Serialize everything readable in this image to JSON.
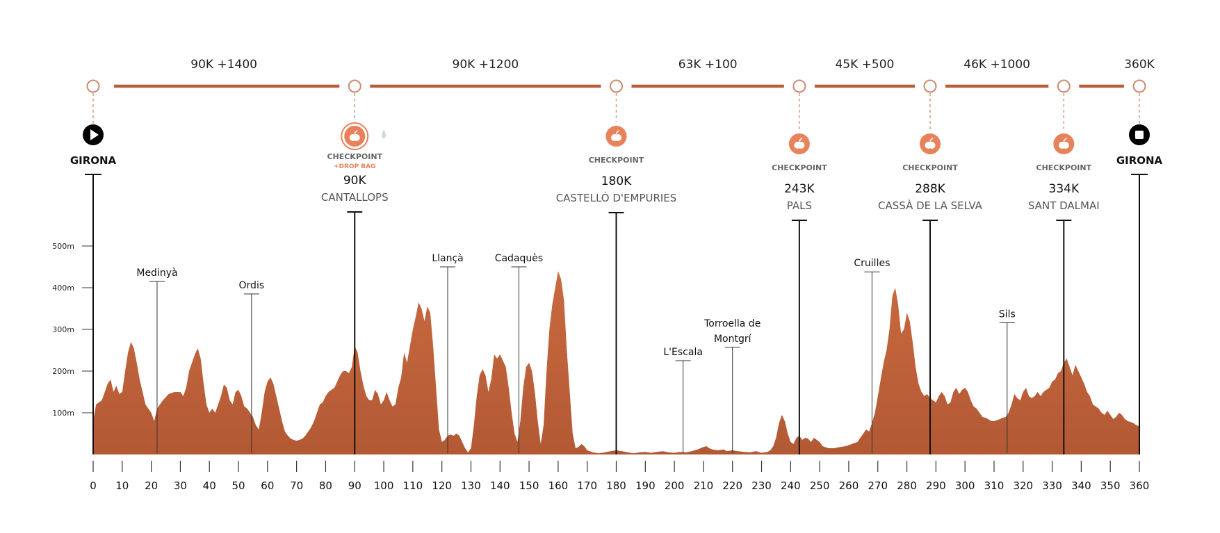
{
  "chart_data": {
    "type": "area",
    "title": "",
    "xlabel": "",
    "ylabel": "",
    "xlim": [
      0,
      360
    ],
    "ylim": [
      0,
      500
    ],
    "y_ticks": [
      {
        "value": 100,
        "label": "100m"
      },
      {
        "value": 200,
        "label": "200m"
      },
      {
        "value": 300,
        "label": "300m"
      },
      {
        "value": 400,
        "label": "400m"
      },
      {
        "value": 500,
        "label": "500m"
      }
    ],
    "x_ticks": [
      0,
      10,
      20,
      30,
      40,
      50,
      60,
      70,
      80,
      90,
      100,
      110,
      120,
      130,
      140,
      150,
      160,
      170,
      180,
      190,
      200,
      210,
      220,
      230,
      240,
      250,
      260,
      270,
      280,
      290,
      300,
      310,
      320,
      330,
      340,
      350,
      360
    ],
    "profile_color": "#c0623a",
    "accent_color": "#e8825a",
    "elevation": [
      [
        0,
        80
      ],
      [
        1,
        120
      ],
      [
        3,
        130
      ],
      [
        5,
        170
      ],
      [
        6,
        180
      ],
      [
        7,
        150
      ],
      [
        8,
        165
      ],
      [
        9,
        145
      ],
      [
        10,
        150
      ],
      [
        11,
        200
      ],
      [
        12,
        245
      ],
      [
        13,
        270
      ],
      [
        14,
        255
      ],
      [
        15,
        220
      ],
      [
        16,
        180
      ],
      [
        17,
        150
      ],
      [
        18,
        120
      ],
      [
        19,
        110
      ],
      [
        20,
        100
      ],
      [
        21,
        80
      ],
      [
        22,
        110
      ],
      [
        24,
        130
      ],
      [
        26,
        145
      ],
      [
        28,
        150
      ],
      [
        30,
        150
      ],
      [
        31,
        140
      ],
      [
        32,
        160
      ],
      [
        33,
        200
      ],
      [
        35,
        240
      ],
      [
        36,
        255
      ],
      [
        37,
        230
      ],
      [
        38,
        170
      ],
      [
        39,
        120
      ],
      [
        40,
        100
      ],
      [
        41,
        110
      ],
      [
        42,
        100
      ],
      [
        43,
        120
      ],
      [
        44,
        140
      ],
      [
        45,
        168
      ],
      [
        46,
        160
      ],
      [
        47,
        130
      ],
      [
        48,
        120
      ],
      [
        49,
        150
      ],
      [
        50,
        155
      ],
      [
        51,
        140
      ],
      [
        52,
        115
      ],
      [
        53,
        110
      ],
      [
        54,
        100
      ],
      [
        55,
        90
      ],
      [
        56,
        70
      ],
      [
        57,
        60
      ],
      [
        58,
        100
      ],
      [
        59,
        150
      ],
      [
        60,
        175
      ],
      [
        61,
        185
      ],
      [
        62,
        170
      ],
      [
        63,
        140
      ],
      [
        64,
        110
      ],
      [
        65,
        80
      ],
      [
        66,
        55
      ],
      [
        67,
        45
      ],
      [
        68,
        38
      ],
      [
        69,
        35
      ],
      [
        70,
        33
      ],
      [
        71,
        35
      ],
      [
        72,
        38
      ],
      [
        73,
        45
      ],
      [
        74,
        55
      ],
      [
        75,
        65
      ],
      [
        76,
        80
      ],
      [
        77,
        100
      ],
      [
        78,
        120
      ],
      [
        79,
        125
      ],
      [
        80,
        140
      ],
      [
        81,
        150
      ],
      [
        82,
        155
      ],
      [
        83,
        160
      ],
      [
        84,
        175
      ],
      [
        85,
        190
      ],
      [
        86,
        200
      ],
      [
        87,
        200
      ],
      [
        88,
        195
      ],
      [
        89,
        210
      ],
      [
        90,
        260
      ],
      [
        91,
        245
      ],
      [
        92,
        200
      ],
      [
        93,
        165
      ],
      [
        94,
        140
      ],
      [
        95,
        130
      ],
      [
        96,
        130
      ],
      [
        97,
        155
      ],
      [
        98,
        145
      ],
      [
        99,
        120
      ],
      [
        100,
        130
      ],
      [
        101,
        150
      ],
      [
        102,
        130
      ],
      [
        103,
        115
      ],
      [
        104,
        120
      ],
      [
        105,
        160
      ],
      [
        106,
        185
      ],
      [
        107,
        245
      ],
      [
        108,
        220
      ],
      [
        109,
        260
      ],
      [
        110,
        300
      ],
      [
        111,
        330
      ],
      [
        112,
        365
      ],
      [
        113,
        350
      ],
      [
        114,
        320
      ],
      [
        115,
        355
      ],
      [
        116,
        340
      ],
      [
        117,
        260
      ],
      [
        118,
        160
      ],
      [
        119,
        60
      ],
      [
        120,
        30
      ],
      [
        121,
        35
      ],
      [
        122,
        45
      ],
      [
        123,
        48
      ],
      [
        124,
        45
      ],
      [
        125,
        50
      ],
      [
        126,
        45
      ],
      [
        127,
        30
      ],
      [
        128,
        15
      ],
      [
        129,
        5
      ],
      [
        130,
        15
      ],
      [
        131,
        70
      ],
      [
        132,
        140
      ],
      [
        133,
        190
      ],
      [
        134,
        205
      ],
      [
        135,
        190
      ],
      [
        136,
        150
      ],
      [
        137,
        180
      ],
      [
        138,
        240
      ],
      [
        139,
        230
      ],
      [
        140,
        240
      ],
      [
        141,
        225
      ],
      [
        142,
        210
      ],
      [
        143,
        160
      ],
      [
        144,
        100
      ],
      [
        145,
        50
      ],
      [
        146,
        30
      ],
      [
        147,
        80
      ],
      [
        148,
        160
      ],
      [
        149,
        210
      ],
      [
        150,
        220
      ],
      [
        151,
        200
      ],
      [
        152,
        150
      ],
      [
        153,
        80
      ],
      [
        154,
        25
      ],
      [
        155,
        70
      ],
      [
        156,
        200
      ],
      [
        157,
        300
      ],
      [
        158,
        360
      ],
      [
        159,
        400
      ],
      [
        160,
        440
      ],
      [
        161,
        420
      ],
      [
        162,
        370
      ],
      [
        163,
        250
      ],
      [
        164,
        150
      ],
      [
        165,
        50
      ],
      [
        166,
        15
      ],
      [
        167,
        18
      ],
      [
        168,
        25
      ],
      [
        169,
        20
      ],
      [
        170,
        10
      ],
      [
        172,
        5
      ],
      [
        174,
        3
      ],
      [
        176,
        5
      ],
      [
        178,
        8
      ],
      [
        180,
        10
      ],
      [
        182,
        8
      ],
      [
        184,
        5
      ],
      [
        186,
        3
      ],
      [
        188,
        5
      ],
      [
        190,
        6
      ],
      [
        192,
        4
      ],
      [
        194,
        6
      ],
      [
        196,
        8
      ],
      [
        198,
        5
      ],
      [
        200,
        4
      ],
      [
        202,
        6
      ],
      [
        204,
        5
      ],
      [
        206,
        8
      ],
      [
        208,
        12
      ],
      [
        210,
        18
      ],
      [
        211,
        20
      ],
      [
        212,
        15
      ],
      [
        213,
        12
      ],
      [
        215,
        10
      ],
      [
        217,
        12
      ],
      [
        218,
        8
      ],
      [
        220,
        10
      ],
      [
        222,
        8
      ],
      [
        224,
        6
      ],
      [
        226,
        5
      ],
      [
        228,
        8
      ],
      [
        230,
        4
      ],
      [
        232,
        6
      ],
      [
        233,
        10
      ],
      [
        234,
        20
      ],
      [
        235,
        40
      ],
      [
        236,
        75
      ],
      [
        237,
        95
      ],
      [
        238,
        80
      ],
      [
        239,
        50
      ],
      [
        240,
        30
      ],
      [
        241,
        25
      ],
      [
        242,
        40
      ],
      [
        243,
        45
      ],
      [
        244,
        35
      ],
      [
        245,
        40
      ],
      [
        246,
        38
      ],
      [
        247,
        30
      ],
      [
        248,
        40
      ],
      [
        249,
        35
      ],
      [
        250,
        30
      ],
      [
        251,
        20
      ],
      [
        253,
        15
      ],
      [
        255,
        15
      ],
      [
        257,
        18
      ],
      [
        259,
        20
      ],
      [
        261,
        25
      ],
      [
        263,
        30
      ],
      [
        265,
        50
      ],
      [
        266,
        60
      ],
      [
        267,
        55
      ],
      [
        268,
        75
      ],
      [
        269,
        100
      ],
      [
        270,
        140
      ],
      [
        271,
        180
      ],
      [
        272,
        220
      ],
      [
        273,
        250
      ],
      [
        274,
        300
      ],
      [
        275,
        380
      ],
      [
        276,
        400
      ],
      [
        277,
        360
      ],
      [
        278,
        290
      ],
      [
        279,
        300
      ],
      [
        280,
        340
      ],
      [
        281,
        320
      ],
      [
        282,
        270
      ],
      [
        283,
        210
      ],
      [
        284,
        170
      ],
      [
        285,
        150
      ],
      [
        286,
        140
      ],
      [
        287,
        145
      ],
      [
        288,
        135
      ],
      [
        289,
        130
      ],
      [
        290,
        125
      ],
      [
        291,
        140
      ],
      [
        292,
        150
      ],
      [
        293,
        140
      ],
      [
        294,
        120
      ],
      [
        295,
        125
      ],
      [
        296,
        150
      ],
      [
        297,
        160
      ],
      [
        298,
        145
      ],
      [
        299,
        155
      ],
      [
        300,
        160
      ],
      [
        301,
        150
      ],
      [
        302,
        130
      ],
      [
        303,
        115
      ],
      [
        304,
        110
      ],
      [
        305,
        100
      ],
      [
        306,
        90
      ],
      [
        307,
        88
      ],
      [
        308,
        85
      ],
      [
        309,
        80
      ],
      [
        310,
        80
      ],
      [
        311,
        82
      ],
      [
        312,
        85
      ],
      [
        313,
        88
      ],
      [
        314,
        90
      ],
      [
        315,
        100
      ],
      [
        316,
        120
      ],
      [
        317,
        145
      ],
      [
        318,
        135
      ],
      [
        319,
        130
      ],
      [
        320,
        150
      ],
      [
        321,
        160
      ],
      [
        322,
        140
      ],
      [
        323,
        135
      ],
      [
        324,
        140
      ],
      [
        325,
        150
      ],
      [
        326,
        140
      ],
      [
        327,
        150
      ],
      [
        328,
        155
      ],
      [
        329,
        160
      ],
      [
        330,
        175
      ],
      [
        331,
        180
      ],
      [
        332,
        195
      ],
      [
        333,
        200
      ],
      [
        334,
        220
      ],
      [
        335,
        230
      ],
      [
        336,
        210
      ],
      [
        337,
        190
      ],
      [
        338,
        215
      ],
      [
        339,
        200
      ],
      [
        340,
        185
      ],
      [
        341,
        170
      ],
      [
        342,
        150
      ],
      [
        343,
        140
      ],
      [
        344,
        120
      ],
      [
        345,
        115
      ],
      [
        346,
        110
      ],
      [
        347,
        100
      ],
      [
        348,
        95
      ],
      [
        349,
        105
      ],
      [
        350,
        95
      ],
      [
        351,
        85
      ],
      [
        352,
        90
      ],
      [
        353,
        100
      ],
      [
        354,
        95
      ],
      [
        355,
        85
      ],
      [
        356,
        80
      ],
      [
        357,
        78
      ],
      [
        358,
        75
      ],
      [
        359,
        70
      ],
      [
        360,
        68
      ]
    ],
    "segments": [
      {
        "label": "90K +1400",
        "from_km": 0,
        "to_km": 90
      },
      {
        "label": "90K +1200",
        "from_km": 90,
        "to_km": 180
      },
      {
        "label": "63K +100",
        "from_km": 180,
        "to_km": 243
      },
      {
        "label": "45K +500",
        "from_km": 243,
        "to_km": 288
      },
      {
        "label": "46K +1000",
        "from_km": 288,
        "to_km": 334
      }
    ],
    "total_label": "360K",
    "start": {
      "km": 0,
      "name": "GIRONA",
      "icon": "play-icon"
    },
    "finish": {
      "km": 360,
      "name": "GIRONA",
      "icon": "stop-icon"
    },
    "checkpoints": [
      {
        "km": 90,
        "word": "CHECKPOINT",
        "extra": "+DROP BAG",
        "km_label": "90K",
        "place": "CANTALLOPS",
        "icon": "apple-icon",
        "highlight": true
      },
      {
        "km": 180,
        "word": "CHECKPOINT",
        "extra": "",
        "km_label": "180K",
        "place": "CASTELLÓ D'EMPURIES",
        "icon": "apple-icon",
        "highlight": false
      },
      {
        "km": 243,
        "word": "CHECKPOINT",
        "extra": "",
        "km_label": "243K",
        "place": "PALS",
        "icon": "apple-icon",
        "highlight": false
      },
      {
        "km": 288,
        "word": "CHECKPOINT",
        "extra": "",
        "km_label": "288K",
        "place": "CASSÀ DE LA SELVA",
        "icon": "apple-icon",
        "highlight": false
      },
      {
        "km": 334,
        "word": "CHECKPOINT",
        "extra": "",
        "km_label": "334K",
        "place": "SANT DALMAI",
        "icon": "apple-icon",
        "highlight": false
      }
    ],
    "towns": [
      {
        "km": 22,
        "lines": [
          "Medinyà"
        ],
        "marker_elev": 415
      },
      {
        "km": 54.5,
        "lines": [
          "Ordis"
        ],
        "marker_elev": 385
      },
      {
        "km": 122,
        "lines": [
          "Llançà"
        ],
        "marker_elev": 450
      },
      {
        "km": 146.5,
        "lines": [
          "Cadaquès"
        ],
        "marker_elev": 450
      },
      {
        "km": 203,
        "lines": [
          "L'Escala"
        ],
        "marker_elev": 225
      },
      {
        "km": 220,
        "lines": [
          "Torroella de",
          "Montgrí"
        ],
        "marker_elev": 257
      },
      {
        "km": 268,
        "lines": [
          "Cruilles"
        ],
        "marker_elev": 438
      },
      {
        "km": 314.5,
        "lines": [
          "Sils"
        ],
        "marker_elev": 316
      }
    ],
    "water_icon": {
      "km": 100,
      "icon": "water-drop-icon"
    }
  }
}
